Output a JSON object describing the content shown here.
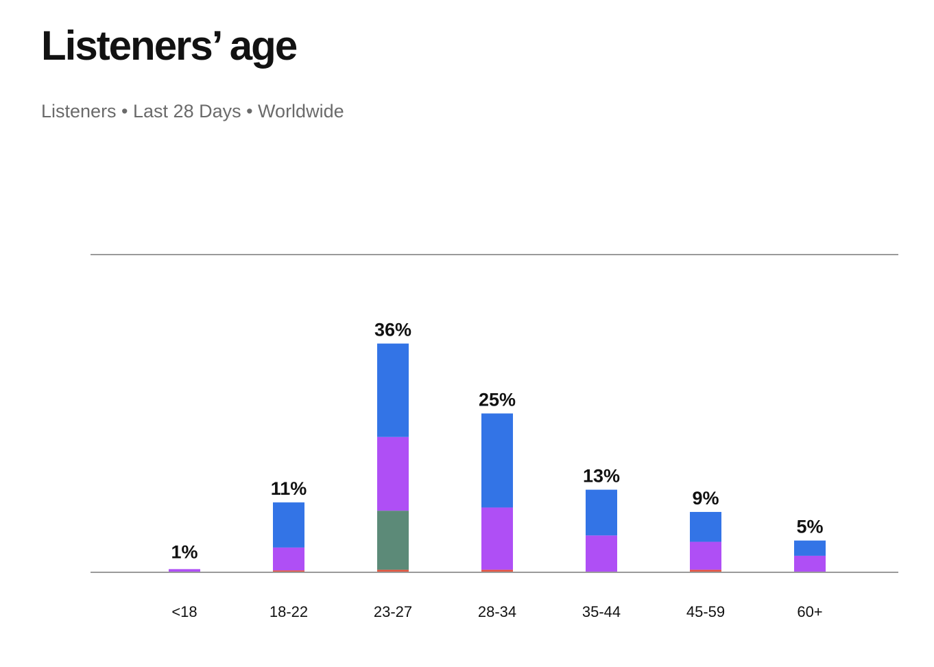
{
  "header": {
    "title": "Listeners’ age",
    "subtitle": "Listeners • Last 28 Days • Worldwide"
  },
  "chart_data": {
    "type": "bar",
    "stacked": true,
    "title": "Listeners’ age",
    "subtitle": "Listeners • Last 28 Days • Worldwide",
    "xlabel": "",
    "ylabel": "",
    "ylim": [
      0,
      50
    ],
    "grid": false,
    "categories": [
      "<18",
      "18-22",
      "23-27",
      "28-34",
      "35-44",
      "45-59",
      "60+"
    ],
    "totals": [
      1,
      11,
      36,
      25,
      13,
      9,
      5
    ],
    "total_labels": [
      "1%",
      "11%",
      "36%",
      "25%",
      "13%",
      "9%",
      "5%"
    ],
    "series": [
      {
        "color": "#e5533d",
        "values": [
          0,
          0.3,
          0.4,
          0.4,
          0,
          0.4,
          0
        ]
      },
      {
        "color": "#5c8a78",
        "values": [
          0,
          0,
          9.3,
          0,
          0,
          0,
          0
        ]
      },
      {
        "color": "#af4ff5",
        "values": [
          0.5,
          3.6,
          11.6,
          9.8,
          5.8,
          4.4,
          2.6
        ]
      },
      {
        "color": "#3374e6",
        "values": [
          0,
          7.1,
          14.7,
          14.8,
          7.2,
          4.7,
          2.4
        ]
      }
    ],
    "axis_line_color": "#9a9a9a"
  }
}
